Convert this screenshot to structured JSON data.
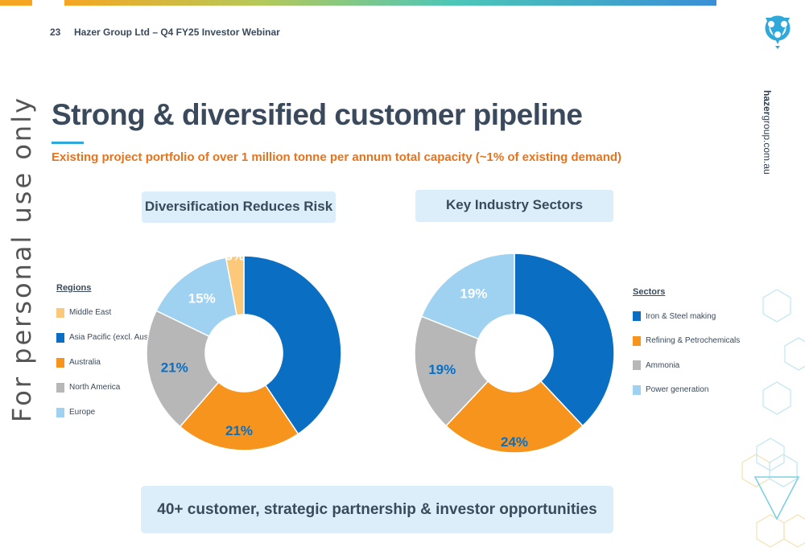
{
  "header": {
    "page_number": "23",
    "subtitle": "Hazer Group Ltd – Q4 FY25 Investor Webinar"
  },
  "side_text_left": "For personal use only",
  "side_text_right": {
    "bold": "hazer",
    "rest": "group.com.au"
  },
  "title": "Strong & diversified customer pipeline",
  "subtitle": "Existing project portfolio of over 1 million tonne per annum total capacity (~1% of existing demand)",
  "footer_box": "40+ customer, strategic partnership & investor opportunities",
  "colors": {
    "blue": "#0a6fc2",
    "orange": "#f7941d",
    "grey": "#b7b7b7",
    "light_blue": "#9fd1f0",
    "light_orange": "#fcc97a",
    "title": "#3a4a5c",
    "accent": "#e8731c"
  },
  "chart_data": [
    {
      "type": "pie",
      "title": "Diversification Reduces Risk",
      "legend_title": "Regions",
      "legend": [
        {
          "label": "Middle East",
          "color": "#fcc97a"
        },
        {
          "label": "Asia Pacific (excl. Aust)",
          "color": "#0a6fc2"
        },
        {
          "label": "Australia",
          "color": "#f7941d"
        },
        {
          "label": "North America",
          "color": "#b7b7b7"
        },
        {
          "label": "Europe",
          "color": "#9fd1f0"
        }
      ],
      "slices": [
        {
          "label": "Asia Pacific (excl. Aust)",
          "value": 41,
          "display": "41%",
          "color": "#0a6fc2",
          "text_color": "#0a6fc2"
        },
        {
          "label": "Australia",
          "value": 21,
          "display": "21%",
          "color": "#f7941d",
          "text_color": "#0a6fc2"
        },
        {
          "label": "North America",
          "value": 21,
          "display": "21%",
          "color": "#b7b7b7",
          "text_color": "#0a6fc2"
        },
        {
          "label": "Europe",
          "value": 15,
          "display": "15%",
          "color": "#9fd1f0",
          "text_color": "#ffffff"
        },
        {
          "label": "Middle East",
          "value": 3,
          "display": "3%",
          "color": "#fcc97a",
          "text_color": "#ffffff"
        }
      ]
    },
    {
      "type": "pie",
      "title": "Key Industry Sectors",
      "legend_title": "Sectors",
      "legend": [
        {
          "label": "Iron & Steel making",
          "color": "#0a6fc2"
        },
        {
          "label": "Refining & Petrochemicals",
          "color": "#f7941d"
        },
        {
          "label": "Ammonia",
          "color": "#b7b7b7"
        },
        {
          "label": "Power generation",
          "color": "#9fd1f0"
        }
      ],
      "slices": [
        {
          "label": "Iron & Steel making",
          "value": 38,
          "display": "38%",
          "color": "#0a6fc2",
          "text_color": "#0a6fc2"
        },
        {
          "label": "Refining & Petrochemicals",
          "value": 24,
          "display": "24%",
          "color": "#f7941d",
          "text_color": "#0a6fc2"
        },
        {
          "label": "Ammonia",
          "value": 19,
          "display": "19%",
          "color": "#b7b7b7",
          "text_color": "#0a6fc2"
        },
        {
          "label": "Power generation",
          "value": 19,
          "display": "19%",
          "color": "#9fd1f0",
          "text_color": "#ffffff"
        }
      ]
    }
  ]
}
